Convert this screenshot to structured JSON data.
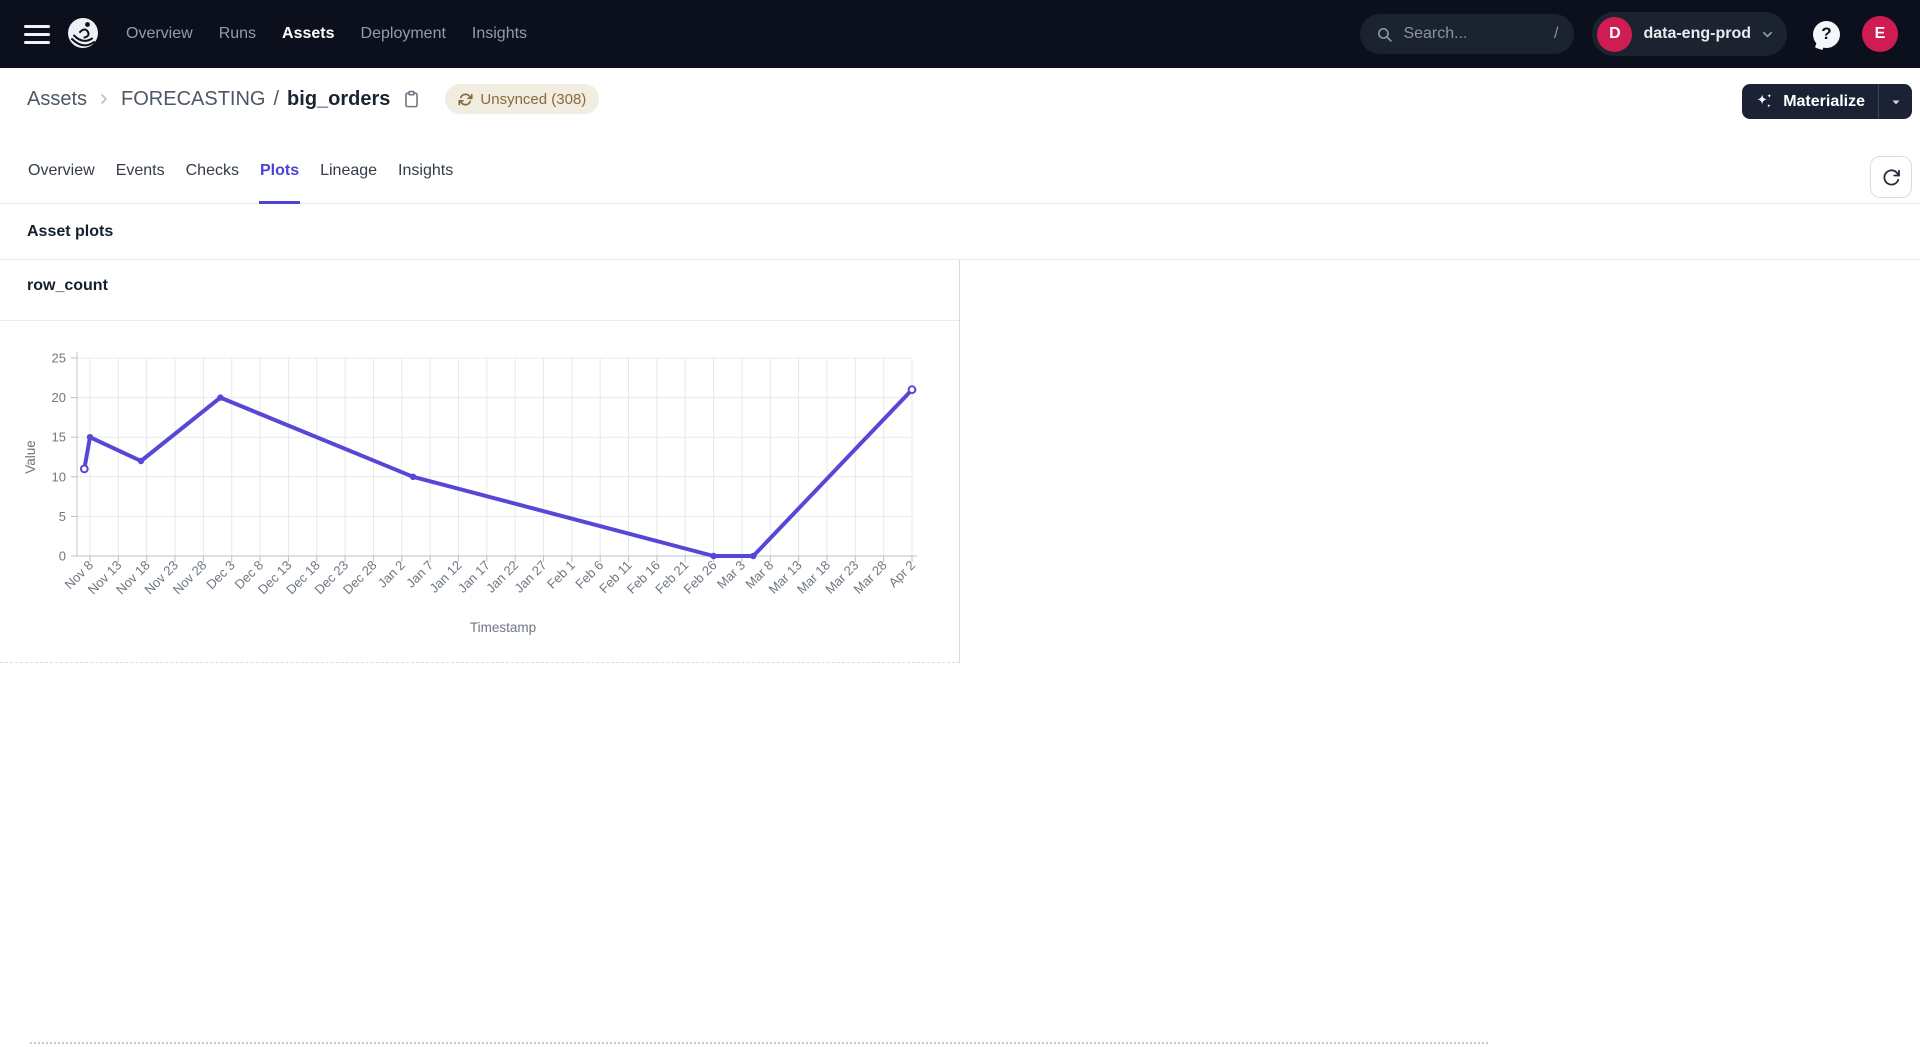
{
  "topbar": {
    "nav_items": [
      {
        "label": "Overview",
        "active": false
      },
      {
        "label": "Runs",
        "active": false
      },
      {
        "label": "Assets",
        "active": true
      },
      {
        "label": "Deployment",
        "active": false
      },
      {
        "label": "Insights",
        "active": false
      }
    ],
    "search_placeholder": "Search...",
    "search_shortcut": "/",
    "deployment_badge_initial": "D",
    "deployment_name": "data-eng-prod",
    "help_glyph": "?",
    "avatar_initial": "E"
  },
  "breadcrumb": {
    "root": "Assets",
    "group": "FORECASTING",
    "separator": "/",
    "asset": "big_orders"
  },
  "unsynced_badge": {
    "label": "Unsynced (308)"
  },
  "actions": {
    "materialize_label": "Materialize"
  },
  "tabs": [
    {
      "label": "Overview",
      "active": false
    },
    {
      "label": "Events",
      "active": false
    },
    {
      "label": "Checks",
      "active": false
    },
    {
      "label": "Plots",
      "active": true
    },
    {
      "label": "Lineage",
      "active": false
    },
    {
      "label": "Insights",
      "active": false
    }
  ],
  "section": {
    "title": "Asset plots"
  },
  "plot_card": {
    "title": "row_count"
  },
  "colors": {
    "accent_indigo": "#4a44d4",
    "crimson": "#cf1d53",
    "badge_bg": "#f2ede1",
    "badge_text": "#8a683c"
  },
  "chart_data": {
    "type": "line",
    "title": "row_count",
    "xlabel": "Timestamp",
    "ylabel": "Value",
    "ylim": [
      0,
      25
    ],
    "y_ticks": [
      0,
      5,
      10,
      15,
      20,
      25
    ],
    "x_ticks": [
      "Nov 8",
      "Nov 13",
      "Nov 18",
      "Nov 23",
      "Nov 28",
      "Dec 3",
      "Dec 8",
      "Dec 13",
      "Dec 18",
      "Dec 23",
      "Dec 28",
      "Jan 2",
      "Jan 7",
      "Jan 12",
      "Jan 17",
      "Jan 22",
      "Jan 27",
      "Feb 1",
      "Feb 6",
      "Feb 11",
      "Feb 16",
      "Feb 21",
      "Feb 26",
      "Mar 3",
      "Mar 8",
      "Mar 13",
      "Mar 18",
      "Mar 23",
      "Mar 28",
      "Apr 2"
    ],
    "x_tick_step_days": 5,
    "grid": true,
    "legend": "none",
    "grid_color": "#e7e8ea",
    "axis_color": "#bcc1c9",
    "text_color": "#6e7781",
    "series": [
      {
        "name": "row_count",
        "color": "#5747d6",
        "points": [
          {
            "date": "Nov 7",
            "days_from_first_tick": -1,
            "value": 11,
            "marker": "open"
          },
          {
            "date": "Nov 8",
            "days_from_first_tick": 0,
            "value": 15,
            "marker": "dot"
          },
          {
            "date": "Nov 17",
            "days_from_first_tick": 9,
            "value": 12,
            "marker": "dot"
          },
          {
            "date": "Dec 1",
            "days_from_first_tick": 23,
            "value": 20,
            "marker": "dot"
          },
          {
            "date": "Jan 4",
            "days_from_first_tick": 57,
            "value": 10,
            "marker": "dot"
          },
          {
            "date": "Feb 26",
            "days_from_first_tick": 110,
            "value": 0,
            "marker": "dot"
          },
          {
            "date": "Mar 5",
            "days_from_first_tick": 117,
            "value": 0,
            "marker": "dot"
          },
          {
            "date": "Apr 2",
            "days_from_first_tick": 145,
            "value": 21,
            "marker": "open"
          }
        ]
      }
    ]
  }
}
